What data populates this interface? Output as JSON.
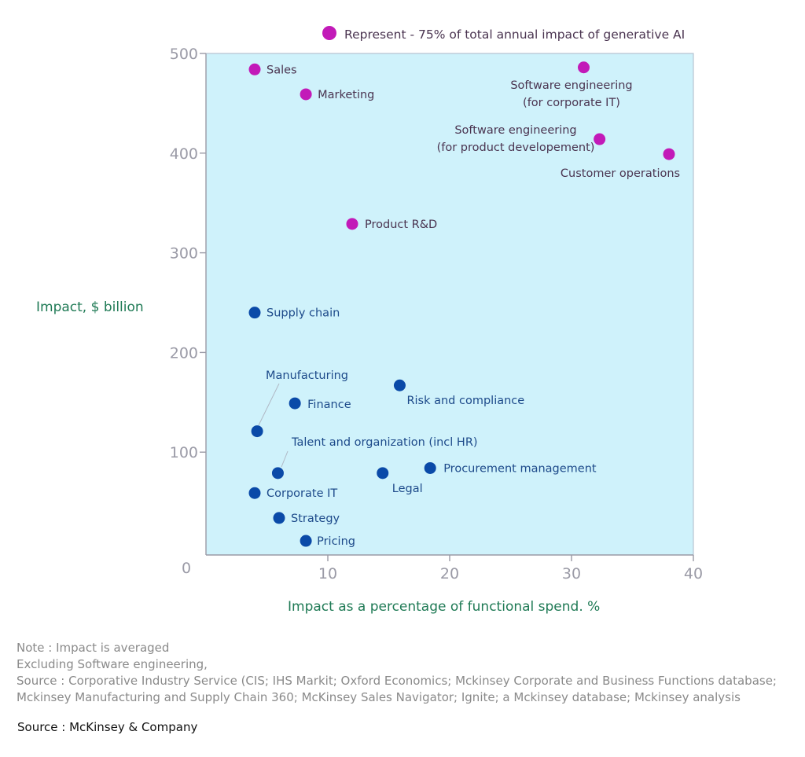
{
  "chart_data": {
    "type": "scatter",
    "xlabel": "Impact as a percentage of functional spend. %",
    "ylabel": "Impact, $ billion",
    "xlim": [
      0,
      40
    ],
    "ylim": [
      0,
      500
    ],
    "xticks": [
      0,
      10,
      20,
      30,
      40
    ],
    "yticks": [
      0,
      100,
      200,
      300,
      400,
      500
    ],
    "x_tick_labels": [
      "10",
      "20",
      "30",
      "40"
    ],
    "y_tick_labels": [
      "0",
      "100",
      "200",
      "300",
      "400",
      "500"
    ],
    "grid": false,
    "legend": {
      "position": "top",
      "entries": [
        {
          "label": "Represent - 75% of total annual impact of generative AI",
          "color": "#c21ab8"
        }
      ]
    },
    "colors": {
      "highlight": "#c21ab8",
      "other": "#0a4aa8",
      "plot_background": "#cff2fb",
      "axis": "#9a9aa6",
      "highlight_label": "#4a3450",
      "other_label": "#1d4a8a"
    },
    "points": [
      {
        "label": "Sales",
        "x": 4,
        "y": 484,
        "group": "highlight"
      },
      {
        "label": "Marketing",
        "x": 8.2,
        "y": 459,
        "group": "highlight"
      },
      {
        "label": "Software engineering\n(for corporate IT)",
        "x": 31,
        "y": 486,
        "group": "highlight"
      },
      {
        "label": "Software engineering\n(for product developement)",
        "x": 32.3,
        "y": 414,
        "group": "highlight"
      },
      {
        "label": "Customer operations",
        "x": 38,
        "y": 399,
        "group": "highlight"
      },
      {
        "label": "Product R&D",
        "x": 12,
        "y": 329,
        "group": "highlight"
      },
      {
        "label": "Supply chain",
        "x": 4,
        "y": 240,
        "group": "other"
      },
      {
        "label": "Manufacturing",
        "x": 4.2,
        "y": 121,
        "group": "other"
      },
      {
        "label": "Finance",
        "x": 7.3,
        "y": 149,
        "group": "other"
      },
      {
        "label": "Risk and compliance",
        "x": 15.9,
        "y": 167,
        "group": "other"
      },
      {
        "label": "Talent and organization (incl HR)",
        "x": 5.9,
        "y": 79,
        "group": "other"
      },
      {
        "label": "Legal",
        "x": 14.5,
        "y": 79,
        "group": "other"
      },
      {
        "label": "Procurement management",
        "x": 18.4,
        "y": 84,
        "group": "other"
      },
      {
        "label": "Corporate IT",
        "x": 4,
        "y": 59,
        "group": "other"
      },
      {
        "label": "Strategy",
        "x": 6,
        "y": 34,
        "group": "other"
      },
      {
        "label": "Pricing",
        "x": 8.2,
        "y": 11,
        "group": "other"
      }
    ]
  },
  "notes": [
    "Note : Impact is averaged",
    "Excluding Software engineering,",
    "Source : Corporative Industry Service (CIS; IHS Markit; Oxford Economics; Mckinsey Corporate and Business Functions database;",
    "Mckinsey Manufacturing and Supply Chain 360; McKinsey Sales Navigator; Ignite; a Mckinsey database; Mckinsey analysis"
  ],
  "source": "Source : McKinsey & Company"
}
